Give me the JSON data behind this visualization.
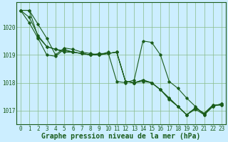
{
  "background_color": "#cceeff",
  "grid_color": "#88bb88",
  "line_color": "#1a5c1a",
  "xlabel": "Graphe pression niveau de la mer (hPa)",
  "xlabel_fontsize": 7,
  "tick_fontsize": 5.5,
  "xlim": [
    -0.5,
    23.5
  ],
  "ylim": [
    1016.5,
    1020.9
  ],
  "yticks": [
    1017,
    1018,
    1019,
    1020
  ],
  "xticks": [
    0,
    1,
    2,
    3,
    4,
    5,
    6,
    7,
    8,
    9,
    10,
    11,
    12,
    13,
    14,
    15,
    16,
    17,
    18,
    19,
    20,
    21,
    22,
    23
  ],
  "series": [
    [
      1020.6,
      1020.6,
      1020.1,
      1019.6,
      1019.0,
      1019.25,
      1019.2,
      1019.1,
      1019.05,
      1019.0,
      1019.05,
      1019.1,
      1018.05,
      1018.0,
      1018.1,
      1018.0,
      1017.75,
      1017.4,
      1017.15,
      1016.85,
      1017.1,
      1016.9,
      1017.2,
      1017.2
    ],
    [
      1020.6,
      1020.15,
      1019.6,
      1019.0,
      1018.95,
      1019.2,
      1019.1,
      1019.05,
      1019.0,
      1019.0,
      1019.1,
      1018.05,
      1018.0,
      1018.1,
      1019.5,
      1019.45,
      1019.0,
      1018.05,
      1017.8,
      1017.45,
      1017.15,
      1016.85,
      1017.15,
      1017.25
    ],
    [
      1020.6,
      1020.6,
      1019.65,
      1019.3,
      1019.2,
      1019.15,
      1019.1,
      1019.05,
      1019.0,
      1019.05,
      1019.05,
      1019.1,
      1018.05,
      1018.0,
      1018.1,
      1018.0,
      1017.75,
      1017.45,
      1017.15,
      1016.85,
      1017.1,
      1016.9,
      1017.2,
      1017.2
    ],
    [
      1020.6,
      1020.35,
      1019.7,
      1019.3,
      1019.2,
      1019.1,
      1019.1,
      1019.05,
      1019.0,
      1019.0,
      1019.05,
      1019.1,
      1018.05,
      1018.0,
      1018.05,
      1018.0,
      1017.75,
      1017.45,
      1017.15,
      1016.85,
      1017.05,
      1016.85,
      1017.15,
      1017.25
    ]
  ]
}
